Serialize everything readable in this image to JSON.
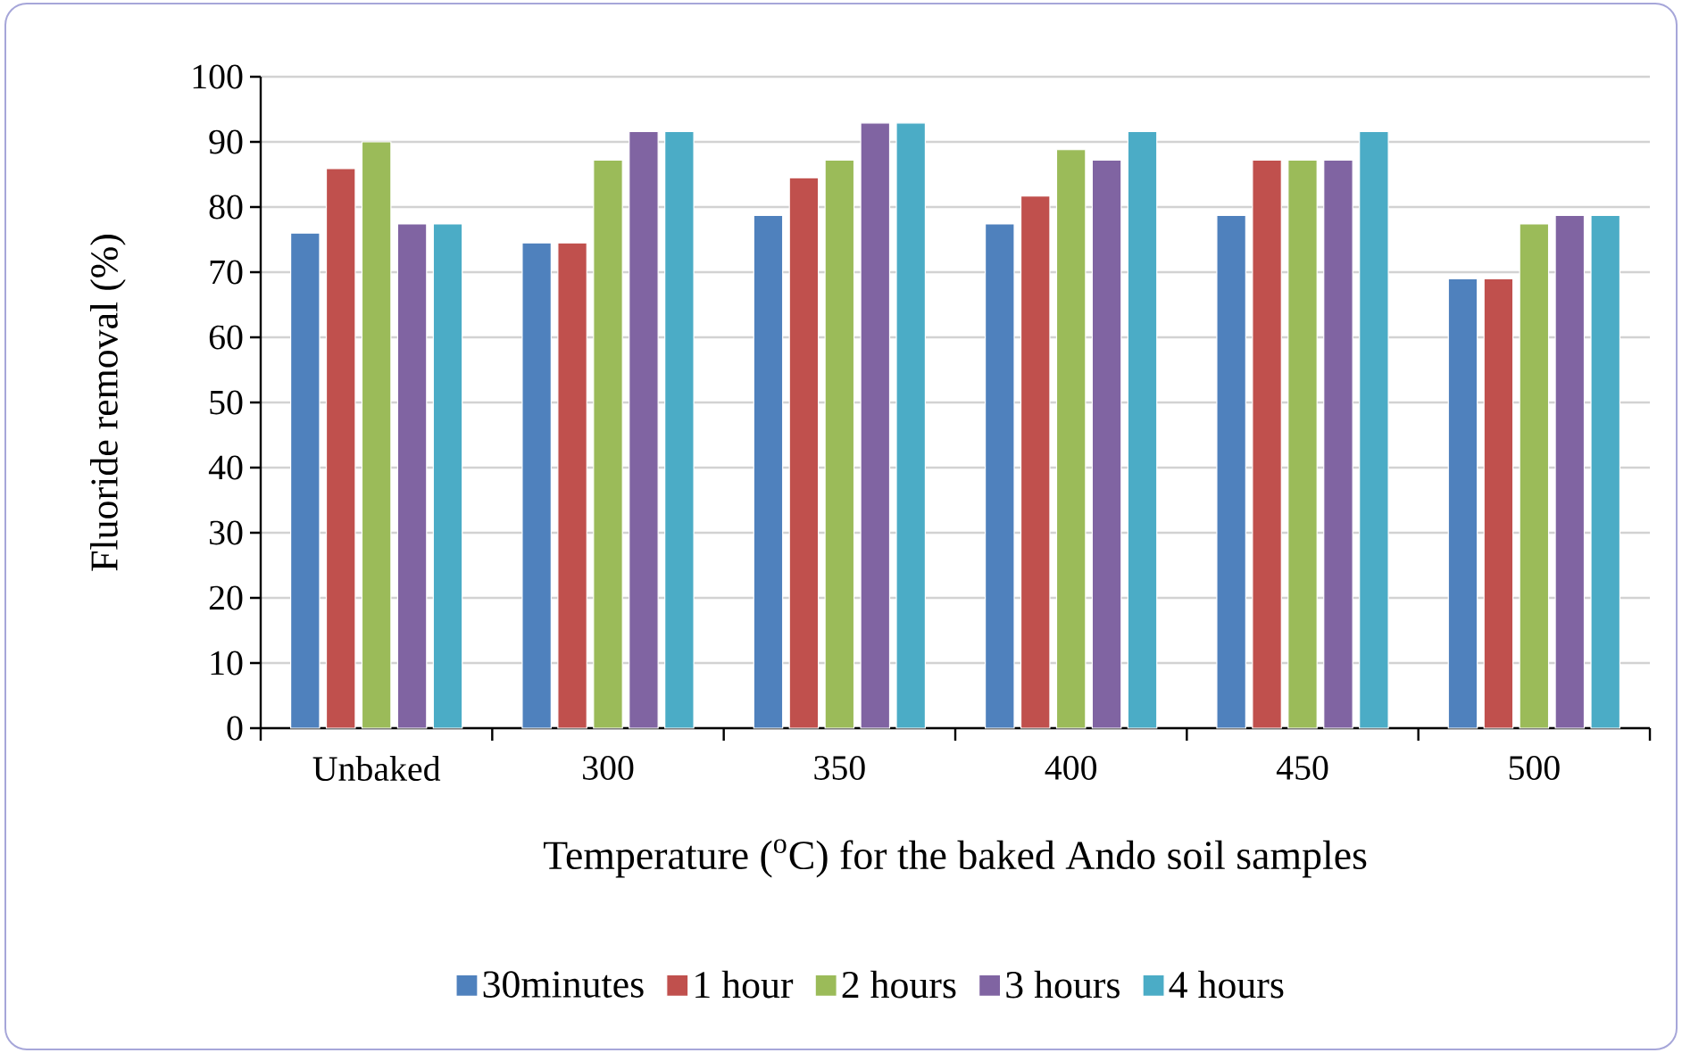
{
  "chart_data": {
    "type": "bar",
    "xlabel": "Temperature ($^{o}$C) for the baked Ando soil samples",
    "ylabel": "Fluoride removal (%)",
    "categories": [
      "Unbaked",
      "300",
      "350",
      "400",
      "450",
      "500"
    ],
    "series": [
      {
        "name": "30minutes",
        "color": "#4f81bd",
        "values": [
          76.0,
          74.5,
          78.7,
          77.4,
          78.7,
          69.0
        ]
      },
      {
        "name": "1 hour",
        "color": "#c0504d",
        "values": [
          85.9,
          74.5,
          84.5,
          81.7,
          87.2,
          69.0
        ]
      },
      {
        "name": "2 hours",
        "color": "#9bbb59",
        "values": [
          90.0,
          87.2,
          87.2,
          88.8,
          87.2,
          77.4
        ]
      },
      {
        "name": "3 hours",
        "color": "#8064a2",
        "values": [
          77.4,
          91.6,
          92.9,
          87.2,
          87.2,
          78.7
        ]
      },
      {
        "name": "4 hours",
        "color": "#4bacc6",
        "values": [
          77.4,
          91.6,
          92.9,
          91.6,
          91.6,
          78.7
        ]
      }
    ],
    "ylim": [
      0,
      100
    ],
    "yticks": [
      0,
      10,
      20,
      30,
      40,
      50,
      60,
      70,
      80,
      90,
      100
    ],
    "grid": "y",
    "legend": "bottom"
  }
}
